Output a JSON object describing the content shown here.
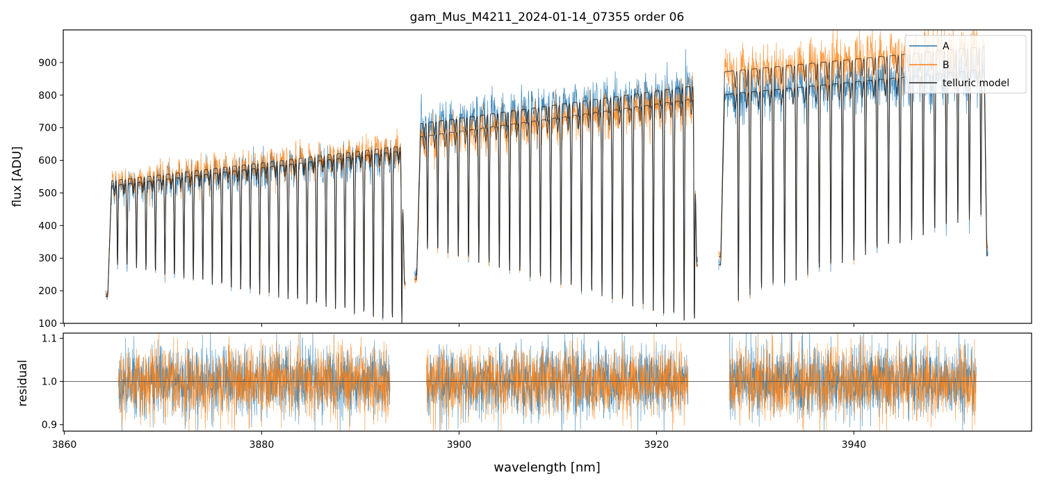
{
  "title": "gam_Mus_M4211_2024-01-14_07355  order 06",
  "colors": {
    "A": "#1f77b4",
    "B": "#ff7f0e",
    "model": "#222222",
    "residual_ref": "#555555"
  },
  "chart_data": [
    {
      "type": "line",
      "panel": "top",
      "ylabel": "flux [ADU]",
      "xlim": [
        3859.9,
        3958.0
      ],
      "ylim": [
        100,
        1000
      ],
      "yticks": [
        100,
        200,
        300,
        400,
        500,
        600,
        700,
        800,
        900
      ],
      "xticks": [
        3860,
        3880,
        3900,
        3920,
        3940
      ],
      "legend": {
        "position": "top-right",
        "entries": [
          "A",
          "B",
          "telluric model"
        ]
      },
      "segments": [
        {
          "x_start": 3864.2,
          "x_end": 3894.6,
          "continuum_start": 520,
          "continuum_end": 630,
          "first_line": 3865.4,
          "line_spacing": 0.96,
          "line_depths_to": [
            280,
            100
          ]
        },
        {
          "x_start": 3895.5,
          "x_end": 3924.2,
          "continuum_start": 700,
          "continuum_end": 820,
          "first_line": 3896.8,
          "line_spacing": 1.04,
          "line_depths_to": [
            330,
            100
          ]
        },
        {
          "x_start": 3926.3,
          "x_end": 3953.6,
          "continuum_start": 860,
          "continuum_end": 940,
          "first_line": 3928.3,
          "line_spacing": 1.17,
          "line_depths_to": [
            170,
            430
          ]
        }
      ],
      "series": [
        {
          "name": "A"
        },
        {
          "name": "B"
        },
        {
          "name": "telluric model"
        }
      ]
    },
    {
      "type": "line",
      "panel": "bottom",
      "xlabel": "wavelength [nm]",
      "ylabel": "residual",
      "xlim": [
        3859.9,
        3958.0
      ],
      "ylim": [
        0.885,
        1.112
      ],
      "yticks": [
        0.9,
        1.0,
        1.1
      ],
      "ytick_labels": [
        "0.9",
        "1.0",
        "1.1"
      ],
      "xticks": [
        3860,
        3880,
        3900,
        3920,
        3940
      ],
      "reference_line": 1.0,
      "segments": [
        {
          "x_start": 3865.5,
          "x_end": 3893.0
        },
        {
          "x_start": 3896.7,
          "x_end": 3923.2
        },
        {
          "x_start": 3927.4,
          "x_end": 3952.4
        }
      ],
      "noise_sigma": 0.04
    }
  ]
}
